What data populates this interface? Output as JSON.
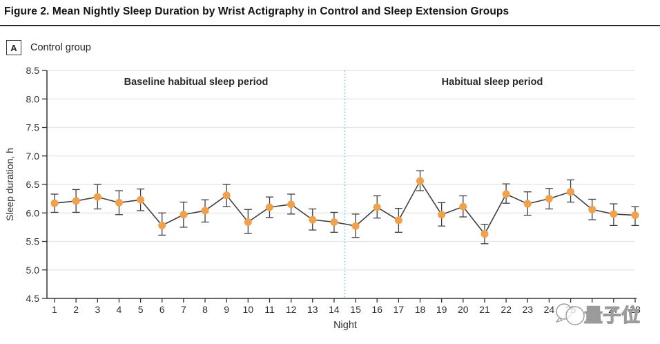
{
  "figure": {
    "title": "Figure 2. Mean Nightly Sleep Duration by Wrist Actigraphy in Control and Sleep Extension Groups",
    "panel_tag": "A",
    "panel_label": "Control group"
  },
  "watermark": {
    "icon": "chat-bubbles-icon",
    "text": "量子位"
  },
  "chart_data": {
    "type": "line",
    "title": "Mean Nightly Sleep Duration by Wrist Actigraphy — Control group",
    "xlabel": "Night",
    "ylabel": "Sleep duration, h",
    "ylim": [
      4.5,
      8.5
    ],
    "ytick_step": 0.5,
    "ytick_labels": [
      "4.5",
      "5.0",
      "5.5",
      "6.0",
      "6.5",
      "7.0",
      "7.5",
      "8.0",
      "8.5"
    ],
    "grid": true,
    "x": [
      1,
      2,
      3,
      4,
      5,
      6,
      7,
      8,
      9,
      10,
      11,
      12,
      13,
      14,
      15,
      16,
      17,
      18,
      19,
      20,
      21,
      22,
      23,
      24,
      25,
      26,
      27,
      28
    ],
    "series": [
      {
        "name": "Control group",
        "values": [
          6.17,
          6.21,
          6.28,
          6.18,
          6.23,
          5.78,
          5.97,
          6.04,
          6.31,
          5.84,
          6.1,
          6.15,
          5.88,
          5.84,
          5.77,
          6.1,
          5.87,
          6.56,
          5.97,
          6.11,
          5.63,
          6.33,
          6.16,
          6.25,
          6.37,
          6.06,
          5.98,
          5.96
        ],
        "err_low": [
          6.01,
          6.01,
          6.07,
          5.97,
          6.04,
          5.61,
          5.75,
          5.84,
          6.11,
          5.64,
          5.92,
          5.98,
          5.7,
          5.66,
          5.57,
          5.91,
          5.66,
          6.39,
          5.77,
          5.93,
          5.46,
          6.17,
          5.96,
          6.07,
          6.19,
          5.88,
          5.78,
          5.78
        ],
        "err_high": [
          6.33,
          6.41,
          6.5,
          6.39,
          6.42,
          6.0,
          6.19,
          6.23,
          6.5,
          6.06,
          6.28,
          6.33,
          6.07,
          6.01,
          5.98,
          6.3,
          6.08,
          6.74,
          6.18,
          6.3,
          5.8,
          6.51,
          6.37,
          6.43,
          6.58,
          6.24,
          6.16,
          6.11
        ]
      }
    ],
    "annotations": [
      "Baseline habitual sleep period",
      "Habitual sleep period"
    ],
    "divider_after_night": 14,
    "colors": {
      "marker": "#F0A14C",
      "line": "#3F3F3F",
      "error_bar": "#3F3F3F",
      "grid": "#E4E4E4",
      "axis": "#333333",
      "divider": "#6EC6E8",
      "watermark": "#9B9B9B"
    }
  }
}
